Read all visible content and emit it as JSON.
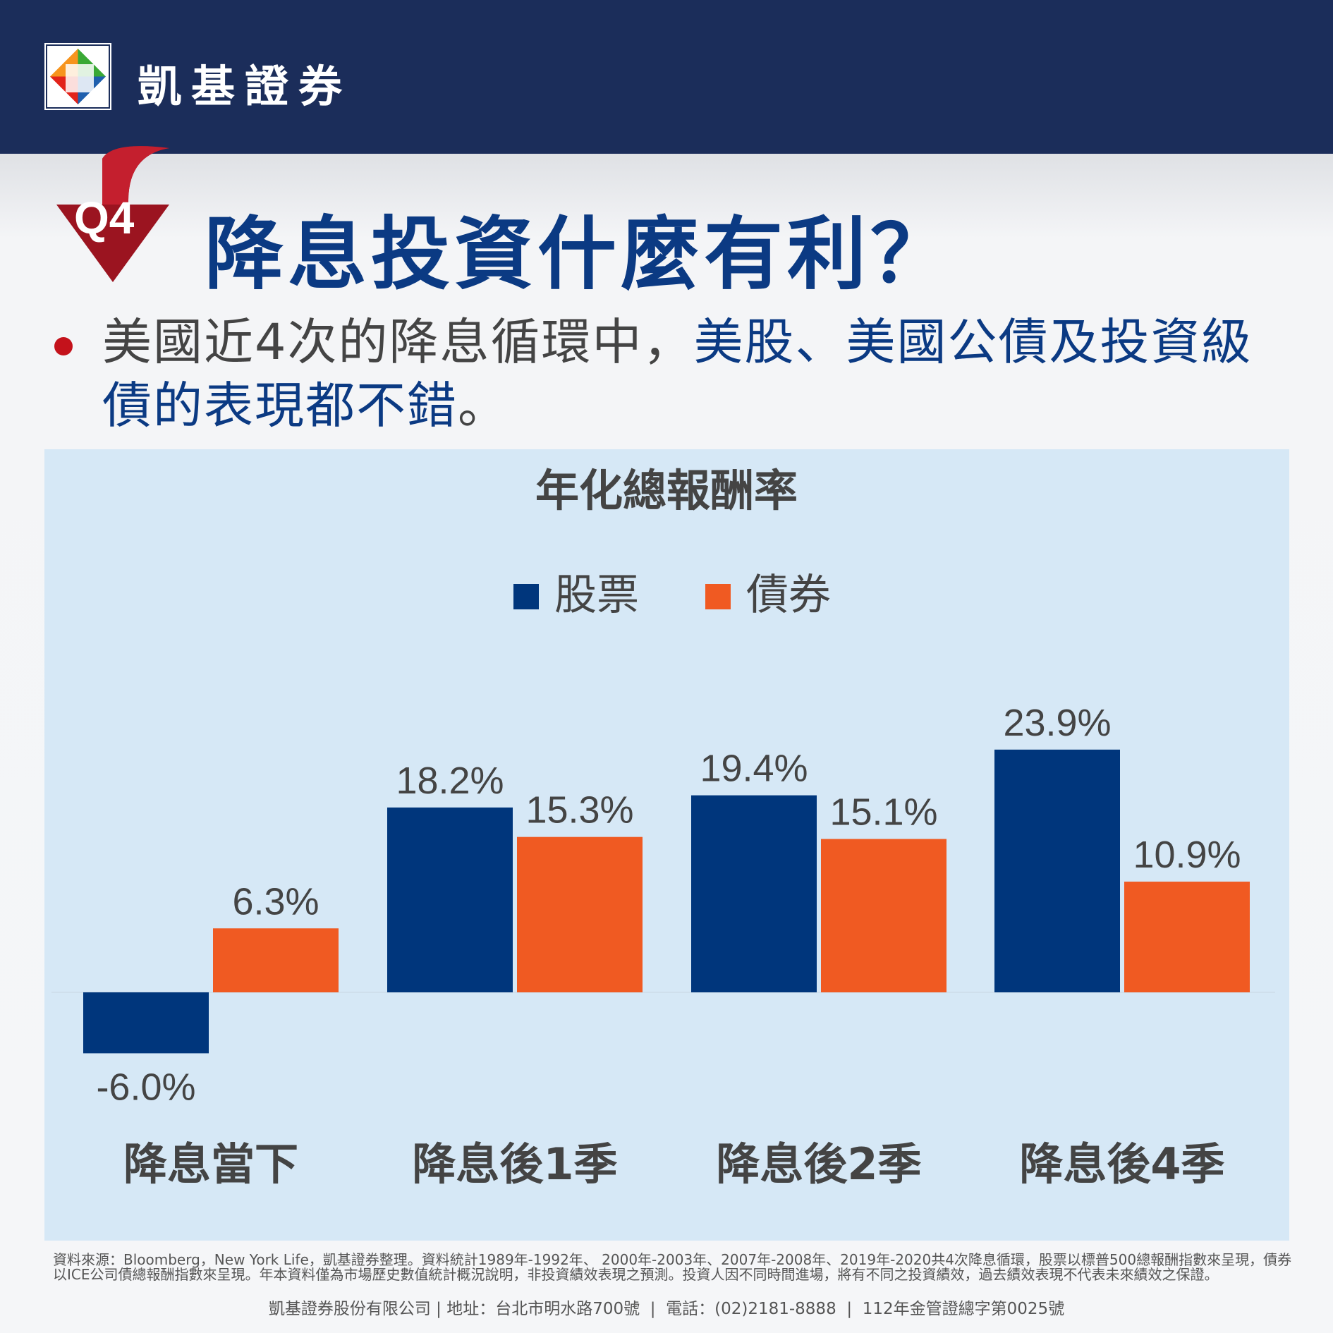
{
  "brand": {
    "name": "凱基證券"
  },
  "header": {
    "badge": "Q4",
    "title": "降息投資什麼有利？"
  },
  "bullet": {
    "part1": "美國近4次的降息循環中，",
    "part2": "美股、美國公債及投資級債的表現都不錯",
    "part3": "。"
  },
  "colors": {
    "header_bg": "#1b2d5a",
    "title": "#0b3a83",
    "stock": "#00367c",
    "bond": "#f05a22",
    "panel": "#d6e8f6",
    "bullet_dot": "#c4121b"
  },
  "chart_data": {
    "type": "bar",
    "title": "年化總報酬率",
    "categories": [
      "降息當下",
      "降息後1季",
      "降息後2季",
      "降息後4季"
    ],
    "series": [
      {
        "name": "股票",
        "values": [
          -6.0,
          18.2,
          19.4,
          23.9
        ],
        "labels": [
          "-6.0%",
          "18.2%",
          "19.4%",
          "23.9%"
        ]
      },
      {
        "name": "債券",
        "values": [
          6.3,
          15.3,
          15.1,
          10.9
        ],
        "labels": [
          "6.3%",
          "15.3%",
          "15.1%",
          "10.9%"
        ]
      }
    ],
    "value_unit": "%",
    "legend_position": "top-center",
    "grid": false
  },
  "footnote": "資料來源：Bloomberg，New York Life，凱基證券整理。資料統計1989年-1992年、 2000年-2003年、2007年-2008年、2019年-2020共4次降息循環，股票以標普500總報酬指數來呈現，債券以ICE公司債總報酬指數來呈現。年本資料僅為市場歷史數值統計概況說明，非投資績效表現之預測。投資人因不同時間進場，將有不同之投資績效，過去績效表現不代表未來績效之保證。",
  "footer": "凱基證券股份有限公司 | 地址：台北市明水路700號  |  電話：(02)2181-8888  |  112年金管證總字第0025號"
}
